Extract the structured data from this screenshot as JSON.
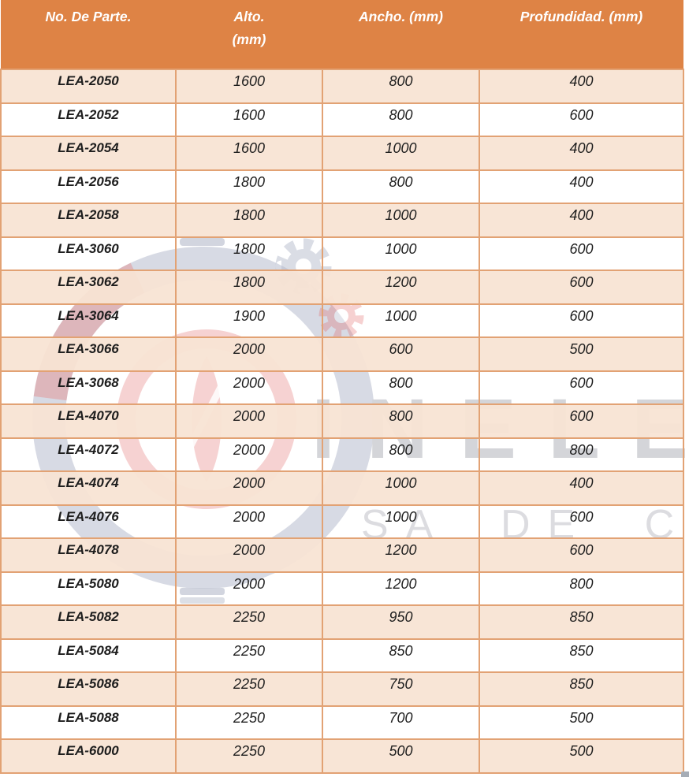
{
  "table": {
    "headers": [
      [
        "No. De Parte."
      ],
      [
        "Alto.",
        "(mm)"
      ],
      [
        "Ancho. (mm)"
      ],
      [
        "Profundidad. (mm)"
      ]
    ],
    "rows": [
      {
        "part": "LEA-2050",
        "alto": "1600",
        "ancho": "800",
        "profundidad": "400"
      },
      {
        "part": "LEA-2052",
        "alto": "1600",
        "ancho": "800",
        "profundidad": "600"
      },
      {
        "part": "LEA-2054",
        "alto": "1600",
        "ancho": "1000",
        "profundidad": "400"
      },
      {
        "part": "LEA-2056",
        "alto": "1800",
        "ancho": "800",
        "profundidad": "400"
      },
      {
        "part": "LEA-2058",
        "alto": "1800",
        "ancho": "1000",
        "profundidad": "400"
      },
      {
        "part": "LEA-3060",
        "alto": "1800",
        "ancho": "1000",
        "profundidad": "600"
      },
      {
        "part": "LEA-3062",
        "alto": "1800",
        "ancho": "1200",
        "profundidad": "600"
      },
      {
        "part": "LEA-3064",
        "alto": "1900",
        "ancho": "1000",
        "profundidad": "600"
      },
      {
        "part": "LEA-3066",
        "alto": "2000",
        "ancho": "600",
        "profundidad": "500"
      },
      {
        "part": "LEA-3068",
        "alto": "2000",
        "ancho": "800",
        "profundidad": "600"
      },
      {
        "part": "LEA-4070",
        "alto": "2000",
        "ancho": "800",
        "profundidad": "600"
      },
      {
        "part": "LEA-4072",
        "alto": "2000",
        "ancho": "800",
        "profundidad": "800"
      },
      {
        "part": "LEA-4074",
        "alto": "2000",
        "ancho": "1000",
        "profundidad": "400"
      },
      {
        "part": "LEA-4076",
        "alto": "2000",
        "ancho": "1000",
        "profundidad": "600"
      },
      {
        "part": "LEA-4078",
        "alto": "2000",
        "ancho": "1200",
        "profundidad": "600"
      },
      {
        "part": "LEA-5080",
        "alto": "2000",
        "ancho": "1200",
        "profundidad": "800"
      },
      {
        "part": "LEA-5082",
        "alto": "2250",
        "ancho": "950",
        "profundidad": "850"
      },
      {
        "part": "LEA-5084",
        "alto": "2250",
        "ancho": "850",
        "profundidad": "850"
      },
      {
        "part": "LEA-5086",
        "alto": "2250",
        "ancho": "750",
        "profundidad": "850"
      },
      {
        "part": "LEA-5088",
        "alto": "2250",
        "ancho": "700",
        "profundidad": "500"
      },
      {
        "part": "LEA-6000",
        "alto": "2250",
        "ancho": "500",
        "profundidad": "500"
      }
    ]
  },
  "watermark": {
    "main_text": "INELEC",
    "sub_text": "SA DE C"
  },
  "colors": {
    "header_bg": "#DE8345",
    "header_text": "#FFFFFF",
    "row_alt_bg": "#F8E3D3",
    "border": "#E2A274",
    "body_text": "#1D1D1D",
    "watermark_grey": "#D4D5D9",
    "watermark_red": "#E05C5C"
  }
}
